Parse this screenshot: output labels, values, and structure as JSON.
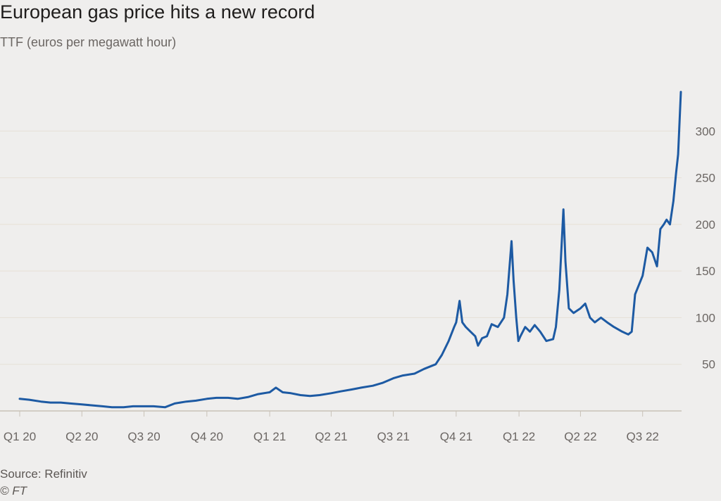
{
  "header": {
    "title": "European gas price hits a new record",
    "subtitle": "TTF (euros per megawatt hour)"
  },
  "footer": {
    "source": "Source: Refinitiv",
    "credit": "© FT"
  },
  "colors": {
    "line": "#1d5aa3",
    "grid": "#e6e0d6",
    "axis": "#c9c2b8",
    "tick_text": "#6b6663",
    "background": "#efeeed"
  },
  "chart_data": {
    "type": "line",
    "title": "European gas price hits a new record",
    "subtitle": "TTF (euros per megawatt hour)",
    "xlabel": "",
    "ylabel": "",
    "ylim": [
      0,
      350
    ],
    "xlim": [
      "2020-01-01",
      "2022-08-27"
    ],
    "yticks": [
      50,
      100,
      150,
      200,
      250,
      300
    ],
    "xticks": [
      {
        "label": "Q1 20",
        "date": "2020-01-01"
      },
      {
        "label": "Q2 20",
        "date": "2020-04-01"
      },
      {
        "label": "Q3 20",
        "date": "2020-07-01"
      },
      {
        "label": "Q4 20",
        "date": "2020-10-01"
      },
      {
        "label": "Q1 21",
        "date": "2021-01-01"
      },
      {
        "label": "Q2 21",
        "date": "2021-04-01"
      },
      {
        "label": "Q3 21",
        "date": "2021-07-01"
      },
      {
        "label": "Q4 21",
        "date": "2021-10-01"
      },
      {
        "label": "Q1 22",
        "date": "2022-01-01"
      },
      {
        "label": "Q2 22",
        "date": "2022-04-01"
      },
      {
        "label": "Q3 22",
        "date": "2022-07-01"
      }
    ],
    "grid": true,
    "series": [
      {
        "name": "",
        "points": [
          [
            "2020-01-01",
            13
          ],
          [
            "2020-01-15",
            12
          ],
          [
            "2020-02-01",
            10
          ],
          [
            "2020-02-15",
            9
          ],
          [
            "2020-03-01",
            9
          ],
          [
            "2020-03-15",
            8
          ],
          [
            "2020-04-01",
            7
          ],
          [
            "2020-04-15",
            6
          ],
          [
            "2020-05-01",
            5
          ],
          [
            "2020-05-15",
            4
          ],
          [
            "2020-06-01",
            4
          ],
          [
            "2020-06-15",
            5
          ],
          [
            "2020-07-01",
            5
          ],
          [
            "2020-07-15",
            5
          ],
          [
            "2020-08-01",
            4
          ],
          [
            "2020-08-15",
            8
          ],
          [
            "2020-09-01",
            10
          ],
          [
            "2020-09-15",
            11
          ],
          [
            "2020-10-01",
            13
          ],
          [
            "2020-10-15",
            14
          ],
          [
            "2020-11-01",
            14
          ],
          [
            "2020-11-15",
            13
          ],
          [
            "2020-12-01",
            15
          ],
          [
            "2020-12-15",
            18
          ],
          [
            "2021-01-01",
            20
          ],
          [
            "2021-01-10",
            25
          ],
          [
            "2021-01-20",
            20
          ],
          [
            "2021-02-01",
            19
          ],
          [
            "2021-02-15",
            17
          ],
          [
            "2021-03-01",
            16
          ],
          [
            "2021-03-15",
            17
          ],
          [
            "2021-04-01",
            19
          ],
          [
            "2021-04-15",
            21
          ],
          [
            "2021-05-01",
            23
          ],
          [
            "2021-05-15",
            25
          ],
          [
            "2021-06-01",
            27
          ],
          [
            "2021-06-15",
            30
          ],
          [
            "2021-07-01",
            35
          ],
          [
            "2021-07-15",
            38
          ],
          [
            "2021-08-01",
            40
          ],
          [
            "2021-08-15",
            45
          ],
          [
            "2021-09-01",
            50
          ],
          [
            "2021-09-10",
            60
          ],
          [
            "2021-09-20",
            75
          ],
          [
            "2021-09-28",
            90
          ],
          [
            "2021-10-01",
            95
          ],
          [
            "2021-10-06",
            118
          ],
          [
            "2021-10-10",
            95
          ],
          [
            "2021-10-15",
            90
          ],
          [
            "2021-10-22",
            85
          ],
          [
            "2021-10-29",
            80
          ],
          [
            "2021-11-02",
            70
          ],
          [
            "2021-11-08",
            78
          ],
          [
            "2021-11-15",
            80
          ],
          [
            "2021-11-22",
            93
          ],
          [
            "2021-12-01",
            90
          ],
          [
            "2021-12-10",
            100
          ],
          [
            "2021-12-15",
            125
          ],
          [
            "2021-12-21",
            182
          ],
          [
            "2021-12-24",
            140
          ],
          [
            "2021-12-28",
            100
          ],
          [
            "2021-12-31",
            75
          ],
          [
            "2022-01-03",
            80
          ],
          [
            "2022-01-10",
            90
          ],
          [
            "2022-01-17",
            85
          ],
          [
            "2022-01-24",
            92
          ],
          [
            "2022-02-01",
            85
          ],
          [
            "2022-02-10",
            75
          ],
          [
            "2022-02-20",
            77
          ],
          [
            "2022-02-24",
            90
          ],
          [
            "2022-03-01",
            130
          ],
          [
            "2022-03-07",
            216
          ],
          [
            "2022-03-10",
            160
          ],
          [
            "2022-03-15",
            110
          ],
          [
            "2022-03-22",
            105
          ],
          [
            "2022-04-01",
            110
          ],
          [
            "2022-04-08",
            115
          ],
          [
            "2022-04-15",
            100
          ],
          [
            "2022-04-22",
            95
          ],
          [
            "2022-05-01",
            100
          ],
          [
            "2022-05-10",
            95
          ],
          [
            "2022-05-20",
            90
          ],
          [
            "2022-06-01",
            85
          ],
          [
            "2022-06-10",
            82
          ],
          [
            "2022-06-15",
            85
          ],
          [
            "2022-06-20",
            125
          ],
          [
            "2022-07-01",
            145
          ],
          [
            "2022-07-08",
            175
          ],
          [
            "2022-07-15",
            170
          ],
          [
            "2022-07-22",
            155
          ],
          [
            "2022-07-27",
            195
          ],
          [
            "2022-08-01",
            200
          ],
          [
            "2022-08-05",
            205
          ],
          [
            "2022-08-10",
            200
          ],
          [
            "2022-08-15",
            225
          ],
          [
            "2022-08-19",
            255
          ],
          [
            "2022-08-22",
            275
          ],
          [
            "2022-08-26",
            342
          ]
        ]
      }
    ]
  }
}
